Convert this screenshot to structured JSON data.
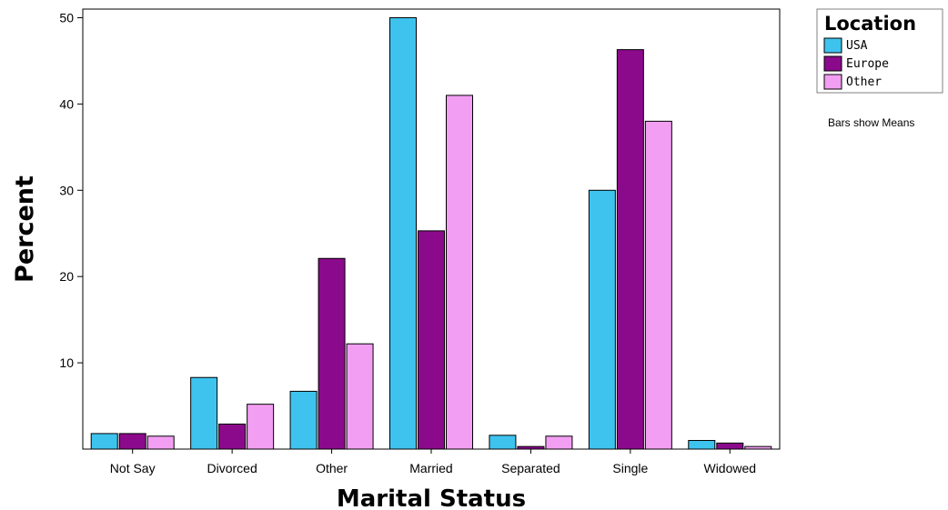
{
  "chart_data": {
    "type": "bar",
    "categories": [
      "Not Say",
      "Divorced",
      "Other",
      "Married",
      "Separated",
      "Single",
      "Widowed"
    ],
    "series": [
      {
        "name": "USA",
        "color": "#3ec3ef",
        "values": [
          1.8,
          8.3,
          6.7,
          50.0,
          1.6,
          30.0,
          1.0
        ]
      },
      {
        "name": "Europe",
        "color": "#8b0a8b",
        "values": [
          1.8,
          2.9,
          22.1,
          25.3,
          0.3,
          46.3,
          0.7
        ]
      },
      {
        "name": "Other",
        "color": "#f29ef2",
        "values": [
          1.5,
          5.2,
          12.2,
          41.0,
          1.5,
          38.0,
          0.3
        ]
      }
    ],
    "xlabel": "Marital Status",
    "ylabel": "Percent",
    "ylim": [
      0,
      51
    ],
    "yticks": [
      10,
      20,
      30,
      40,
      50
    ],
    "legend_title": "Location",
    "legend_position": "top-right",
    "note": "Bars show Means",
    "grid": false
  }
}
